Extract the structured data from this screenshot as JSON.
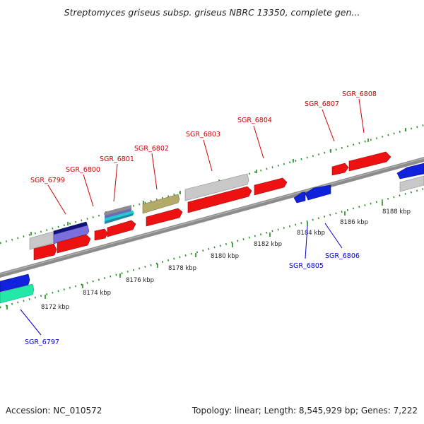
{
  "title": "Streptomyces griseus subsp. griseus NBRC 13350, complete gen...",
  "footer": {
    "accession": "Accession: NC_010572",
    "summary": "Topology: linear; Length: 8,545,929 bp; Genes: 7,222"
  },
  "colors": {
    "axis": "#8c8c8c",
    "tick": "#1e8a1e",
    "forward_label": "#cc0000",
    "reverse_label": "#0000cc",
    "gene_red": "#ee1111",
    "gene_blue": "#1122dd",
    "gene_gray": "#c8c8c8",
    "gene_navy": "#11117a",
    "gene_lavender": "#7a6fdc",
    "gene_olive": "#b3aa6a",
    "gene_teal": "#22cccc",
    "gene_mint": "#22e8a8"
  },
  "scale_labels": [
    "8172 kbp",
    "8174 kbp",
    "8176 kbp",
    "8178 kbp",
    "8180 kbp",
    "8182 kbp",
    "8184 kbp",
    "8186 kbp",
    "8188 kbp"
  ],
  "gene_labels": {
    "forward": [
      "SGR_6799",
      "SGR_6800",
      "SGR_6801",
      "SGR_6802",
      "SGR_6803",
      "SGR_6804",
      "SGR_6807",
      "SGR_6808"
    ],
    "reverse": [
      "SGR_6797",
      "SGR_6805",
      "SGR_6806"
    ]
  }
}
